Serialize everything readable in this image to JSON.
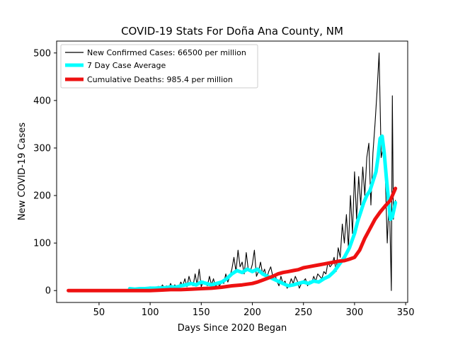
{
  "chart_data": {
    "type": "line",
    "title": "COVID-19 Stats For Doña Ana County, NM",
    "xlabel": "Days Since 2020 Began",
    "ylabel": "New COVID-19 Cases",
    "xlim": [
      8.5,
      352
    ],
    "ylim": [
      -25,
      525
    ],
    "xticks": [
      50,
      100,
      150,
      200,
      250,
      300,
      350
    ],
    "yticks": [
      0,
      100,
      200,
      300,
      400,
      500
    ],
    "grid": false,
    "legend_position": "top-left",
    "series": [
      {
        "name": "New Confirmed Cases: 66500 per million",
        "color": "#000000",
        "x": [
          80,
          82,
          84,
          86,
          88,
          90,
          92,
          94,
          96,
          98,
          100,
          102,
          104,
          106,
          108,
          110,
          112,
          114,
          116,
          118,
          120,
          122,
          124,
          126,
          128,
          130,
          132,
          134,
          136,
          138,
          140,
          142,
          144,
          146,
          148,
          150,
          152,
          154,
          156,
          158,
          160,
          162,
          164,
          166,
          168,
          170,
          172,
          174,
          176,
          178,
          180,
          182,
          184,
          186,
          188,
          190,
          192,
          194,
          196,
          198,
          200,
          202,
          204,
          206,
          208,
          210,
          212,
          214,
          216,
          218,
          220,
          222,
          224,
          226,
          228,
          230,
          232,
          234,
          236,
          238,
          240,
          242,
          244,
          246,
          248,
          250,
          252,
          254,
          256,
          258,
          260,
          262,
          264,
          266,
          268,
          270,
          272,
          274,
          276,
          278,
          280,
          282,
          284,
          286,
          288,
          290,
          292,
          294,
          296,
          298,
          300,
          302,
          304,
          306,
          308,
          310,
          312,
          314,
          316,
          318,
          320,
          322,
          324,
          326,
          328,
          330,
          332,
          334,
          336,
          337,
          338,
          340
        ],
        "values": [
          5,
          2,
          4,
          3,
          6,
          3,
          5,
          2,
          4,
          6,
          8,
          3,
          6,
          5,
          9,
          4,
          12,
          6,
          10,
          3,
          15,
          5,
          12,
          8,
          6,
          18,
          10,
          25,
          8,
          30,
          15,
          10,
          35,
          12,
          45,
          8,
          20,
          15,
          10,
          30,
          12,
          25,
          8,
          15,
          10,
          20,
          15,
          35,
          18,
          30,
          45,
          70,
          40,
          85,
          50,
          60,
          35,
          80,
          45,
          40,
          55,
          85,
          30,
          40,
          60,
          35,
          45,
          25,
          40,
          50,
          30,
          35,
          20,
          10,
          30,
          15,
          20,
          5,
          10,
          25,
          15,
          30,
          20,
          5,
          15,
          20,
          25,
          10,
          20,
          15,
          30,
          20,
          35,
          30,
          25,
          40,
          35,
          60,
          50,
          55,
          70,
          40,
          90,
          70,
          140,
          100,
          160,
          90,
          200,
          120,
          250,
          150,
          240,
          180,
          260,
          200,
          280,
          310,
          180,
          290,
          350,
          420,
          500,
          280,
          300,
          250,
          100,
          200,
          0,
          410,
          150,
          190
        ]
      },
      {
        "name": "7 Day Case Average",
        "color": "#00ffff",
        "x": [
          80,
          85,
          90,
          95,
          100,
          105,
          110,
          115,
          120,
          125,
          130,
          135,
          140,
          145,
          150,
          155,
          160,
          165,
          170,
          175,
          180,
          185,
          190,
          195,
          200,
          205,
          210,
          215,
          220,
          225,
          230,
          235,
          240,
          245,
          250,
          255,
          260,
          265,
          270,
          275,
          280,
          285,
          290,
          295,
          300,
          303,
          306,
          309,
          312,
          315,
          318,
          321,
          323,
          325,
          327,
          329,
          331,
          333,
          335,
          337,
          340
        ],
        "values": [
          4,
          3,
          4,
          4,
          5,
          5,
          6,
          6,
          8,
          7,
          10,
          12,
          15,
          12,
          18,
          15,
          12,
          15,
          18,
          25,
          35,
          42,
          38,
          45,
          40,
          45,
          35,
          30,
          25,
          20,
          15,
          10,
          12,
          15,
          18,
          15,
          20,
          18,
          25,
          30,
          40,
          55,
          70,
          90,
          120,
          145,
          165,
          185,
          200,
          210,
          230,
          250,
          280,
          320,
          325,
          290,
          240,
          195,
          150,
          155,
          185
        ]
      },
      {
        "name": "Cumulative Deaths: 985.4 per million",
        "color": "#ee1111",
        "x": [
          20,
          50,
          80,
          100,
          110,
          120,
          130,
          140,
          150,
          160,
          170,
          180,
          190,
          200,
          205,
          210,
          215,
          220,
          225,
          230,
          235,
          240,
          245,
          250,
          255,
          260,
          265,
          270,
          275,
          280,
          285,
          290,
          295,
          300,
          305,
          310,
          315,
          320,
          325,
          330,
          335,
          340
        ],
        "values": [
          0,
          0,
          0,
          0,
          1,
          2,
          2,
          3,
          4,
          5,
          7,
          10,
          12,
          15,
          18,
          22,
          26,
          30,
          35,
          38,
          40,
          42,
          44,
          48,
          50,
          52,
          54,
          56,
          58,
          60,
          62,
          63,
          66,
          70,
          85,
          110,
          130,
          150,
          165,
          178,
          190,
          215
        ]
      }
    ]
  }
}
